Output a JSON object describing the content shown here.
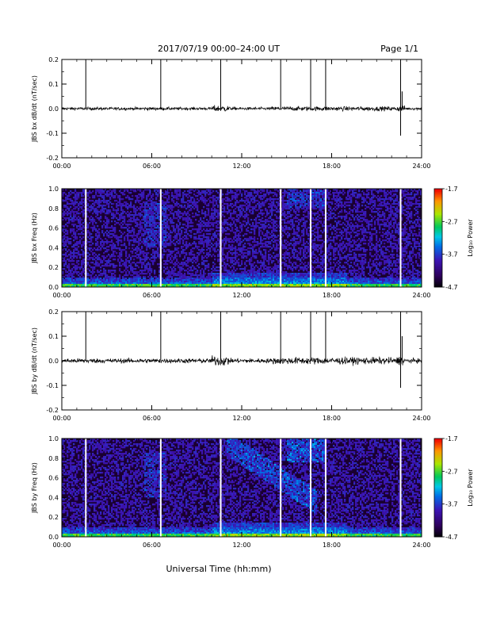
{
  "header": {
    "title": "2017/07/19   00:00–24:00 UT",
    "page": "Page 1/1"
  },
  "xlabel": "Universal Time (hh:mm)",
  "xticks": [
    "00:00",
    "06:00",
    "12:00",
    "18:00",
    "24:00"
  ],
  "colorbar": {
    "label": "Log₁₀ Power",
    "ticks": [
      "-1.7",
      "-2.7",
      "-3.7",
      "-4.7"
    ],
    "range": [
      -4.7,
      -1.7
    ]
  },
  "event_lines_hours": [
    1.6,
    6.6,
    10.6,
    14.6,
    16.6,
    17.6,
    22.6
  ],
  "chart_data": [
    {
      "type": "line",
      "ylabel": "JBS bx dB/dt (nT/sec)",
      "xlim": [
        0,
        24
      ],
      "ylim": [
        -0.2,
        0.2
      ],
      "yticks": [
        "0.2",
        "0.1",
        "0.0",
        "-0.1",
        "-0.2"
      ],
      "baseline": 0.0,
      "noise_amplitude": 0.005,
      "spikes": [
        {
          "x": 1.6,
          "y": 0.2
        },
        {
          "x": 6.6,
          "y": 0.2
        },
        {
          "x": 10.6,
          "y": 0.2
        },
        {
          "x": 14.6,
          "y": 0.2
        },
        {
          "x": 16.6,
          "y": 0.2
        },
        {
          "x": 17.6,
          "y": 0.2
        },
        {
          "x": 22.6,
          "y": 0.21
        },
        {
          "x": 22.7,
          "y": 0.07
        },
        {
          "x": 22.6,
          "y": -0.11
        }
      ]
    },
    {
      "type": "heatmap",
      "ylabel": "JBS bx Freq (Hz)",
      "xlim": [
        0,
        24
      ],
      "ylim": [
        0.0,
        1.0
      ],
      "yticks": [
        "1.0",
        "0.8",
        "0.6",
        "0.4",
        "0.2",
        "0.0"
      ],
      "zlim": [
        -4.7,
        -1.7
      ],
      "gaps_hours": [
        1.6,
        6.6,
        10.6,
        14.6,
        16.6,
        17.6,
        22.6
      ]
    },
    {
      "type": "line",
      "ylabel": "JBS by dB/dt (nT/sec)",
      "xlim": [
        0,
        24
      ],
      "ylim": [
        -0.2,
        0.2
      ],
      "yticks": [
        "0.2",
        "0.1",
        "0.0",
        "-0.1",
        "-0.2"
      ],
      "baseline": 0.0,
      "noise_amplitude": 0.008,
      "spikes": [
        {
          "x": 1.6,
          "y": 0.2
        },
        {
          "x": 6.6,
          "y": 0.2
        },
        {
          "x": 10.6,
          "y": 0.2
        },
        {
          "x": 14.6,
          "y": 0.2
        },
        {
          "x": 16.6,
          "y": 0.2
        },
        {
          "x": 17.6,
          "y": 0.2
        },
        {
          "x": 22.6,
          "y": 0.21
        },
        {
          "x": 22.7,
          "y": 0.1
        },
        {
          "x": 22.6,
          "y": -0.11
        }
      ]
    },
    {
      "type": "heatmap",
      "ylabel": "JBS by Freq (Hz)",
      "xlim": [
        0,
        24
      ],
      "ylim": [
        0.0,
        1.0
      ],
      "yticks": [
        "1.0",
        "0.8",
        "0.6",
        "0.4",
        "0.2",
        "0.0"
      ],
      "zlim": [
        -4.7,
        -1.7
      ],
      "gaps_hours": [
        1.6,
        6.6,
        10.6,
        14.6,
        16.6,
        17.6,
        22.6
      ]
    }
  ]
}
